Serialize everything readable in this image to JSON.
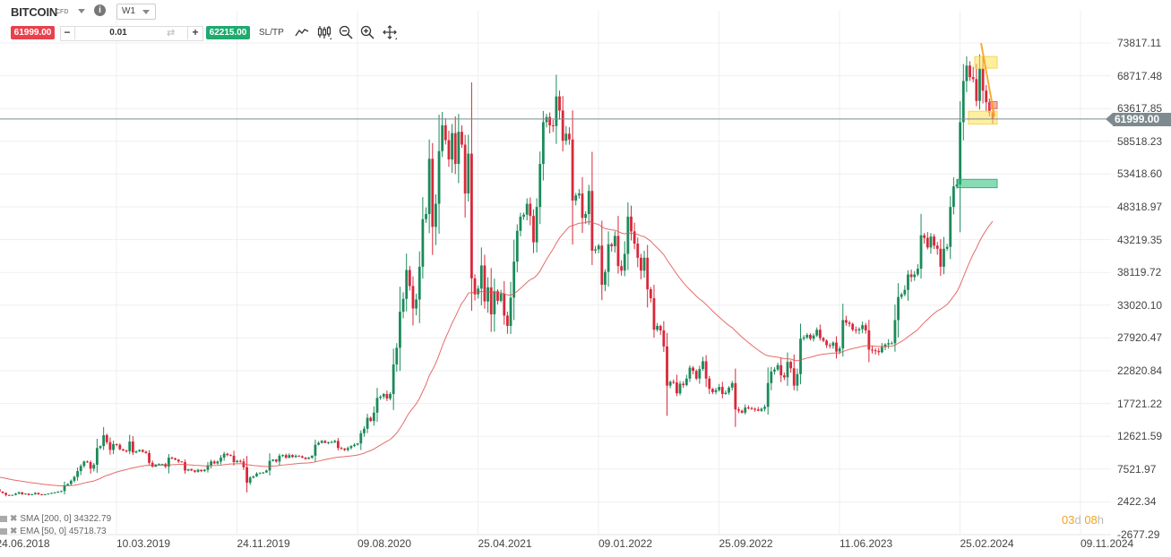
{
  "header": {
    "symbol": "BITCOIN",
    "instrument_type": "CFD",
    "timeframe": "W1",
    "sell_price": "61999.00",
    "buy_price": "62215.00",
    "quantity": "0.01",
    "sltp_label": "SL/TP",
    "minus_label": "−",
    "plus_label": "+",
    "info_label": "i",
    "icons": [
      "chart-type-line-icon",
      "indicators-icon",
      "zoom-out-icon",
      "zoom-in-icon",
      "crosshair-move-icon"
    ]
  },
  "colors": {
    "sell": "#e8414d",
    "buy": "#1faa6e",
    "bull_candle": "#1b8a5a",
    "bear_candle": "#d8283a",
    "ema_line": "#e0524f",
    "price_line": "#7d8a8f",
    "countdown": "#f7a21b"
  },
  "indicators": [
    {
      "label": "SMA [200, 0] 34322.79"
    },
    {
      "label": "EMA [50, 0] 45718.73"
    }
  ],
  "countdown": {
    "days": "03",
    "d": "d",
    "hours": "08",
    "h": "h"
  },
  "current_price_tag": "61999.00",
  "chart_data": {
    "type": "candlestick",
    "title": "BITCOIN CFD W1",
    "xlabel": "",
    "ylabel": "",
    "ylim": [
      -2677.29,
      73817.11
    ],
    "y_ticks": [
      "73817.11",
      "68717.48",
      "63617.85",
      "58518.23",
      "53418.60",
      "48318.97",
      "43219.35",
      "38119.72",
      "33020.10",
      "27920.47",
      "22820.84",
      "17721.22",
      "12621.59",
      "7521.97",
      "2422.34",
      "-2677.29"
    ],
    "x_ticks": [
      "24.06.2018",
      "10.03.2019",
      "24.11.2019",
      "09.08.2020",
      "25.04.2021",
      "09.01.2022",
      "25.09.2022",
      "11.06.2023",
      "25.02.2024",
      "09.11.2024"
    ],
    "current_price": 61999.0,
    "grid": true,
    "series_note": "approximate weekly closes read from chart, Jun 2018 - Mar 2024",
    "weekly_closes": [
      6400,
      6700,
      7400,
      7300,
      6300,
      6400,
      6200,
      6700,
      6500,
      6300,
      6600,
      6500,
      6600,
      6500,
      6400,
      6500,
      6300,
      5600,
      4400,
      4000,
      3800,
      3500,
      3400,
      3500,
      3700,
      3900,
      3600,
      3700,
      3500,
      3600,
      3800,
      3600,
      3500,
      3600,
      3700,
      3800,
      3900,
      4000,
      4100,
      5000,
      5200,
      5700,
      6300,
      7200,
      8000,
      8700,
      8600,
      7600,
      8200,
      10800,
      11100,
      12800,
      11700,
      10500,
      11400,
      11300,
      10600,
      10400,
      10300,
      11800,
      10100,
      10300,
      10500,
      10200,
      10000,
      8500,
      7900,
      8200,
      8300,
      8300,
      7900,
      9300,
      9200,
      9000,
      8700,
      8600,
      7300,
      7500,
      7300,
      7100,
      7400,
      7200,
      7400,
      8100,
      8700,
      8400,
      8700,
      9300,
      9900,
      9700,
      9600,
      8600,
      8800,
      8700,
      7800,
      5400,
      6200,
      6400,
      6800,
      6900,
      7000,
      7300,
      8800,
      9000,
      8700,
      9600,
      9700,
      9300,
      9700,
      9400,
      9600,
      9500,
      9300,
      9100,
      9300,
      9600,
      11300,
      11600,
      11900,
      11600,
      11700,
      11700,
      11900,
      10800,
      10700,
      10500,
      10800,
      11100,
      11300,
      11500,
      13100,
      13800,
      15500,
      15000,
      16300,
      18600,
      18800,
      19200,
      18500,
      19200,
      23800,
      26400,
      32000,
      34000,
      38500,
      36000,
      32500,
      33900,
      39000,
      46400,
      47200,
      55800,
      45200,
      48800,
      57000,
      61000,
      58700,
      55700,
      59800,
      55000,
      60000,
      58000,
      50400,
      56600,
      37200,
      34700,
      35600,
      39200,
      33600,
      35800,
      31600,
      35200,
      33700,
      34800,
      31400,
      29800,
      34200,
      39800,
      44600,
      46800,
      47100,
      48800,
      46900,
      42800,
      48300,
      55000,
      61500,
      62300,
      61000,
      60900,
      65500,
      63300,
      58600,
      59700,
      58800,
      49300,
      50100,
      50400,
      46600,
      47200,
      50800,
      41500,
      41700,
      42300,
      36200,
      38200,
      42500,
      42200,
      43800,
      39100,
      38400,
      41000,
      46800,
      44500,
      42600,
      40400,
      38400,
      40400,
      35500,
      34100,
      29200,
      29800,
      29100,
      26600,
      20500,
      21100,
      21000,
      19300,
      20800,
      20600,
      21600,
      23300,
      22800,
      21600,
      23100,
      24300,
      21600,
      20000,
      19500,
      19800,
      20300,
      19200,
      19400,
      20200,
      20900,
      16800,
      16600,
      16300,
      17100,
      17000,
      16900,
      16800,
      16600,
      16900,
      17200,
      20900,
      22700,
      23000,
      23700,
      22100,
      21800,
      24200,
      23200,
      20500,
      22300,
      27800,
      28000,
      28400,
      27800,
      28300,
      29200,
      27900,
      27500,
      26800,
      26700,
      27200,
      25800,
      26300,
      30700,
      30300,
      30100,
      29200,
      29100,
      29300,
      29900,
      29100,
      26100,
      26000,
      25900,
      25700,
      26500,
      26900,
      27100,
      27100,
      30700,
      34300,
      34700,
      35400,
      37800,
      37400,
      37800,
      38700,
      43900,
      43500,
      42000,
      43700,
      42300,
      41800,
      39000,
      41800,
      42100,
      48300,
      51500,
      51800,
      61500,
      67900,
      70300,
      68500,
      68200,
      64800,
      69800,
      66400,
      64600,
      63000,
      61999
    ],
    "ema50_approx": "smoothed red line; last value 45718.73",
    "annotations": [
      {
        "type": "zone",
        "color": "yellow",
        "price_low": 69900,
        "price_high": 71700
      },
      {
        "type": "zone",
        "color": "yellow",
        "price_low": 61200,
        "price_high": 63200
      },
      {
        "type": "zone",
        "color": "green",
        "price_low": 51300,
        "price_high": 52600
      },
      {
        "type": "zone",
        "color": "red",
        "price_low": 63600,
        "price_high": 64700
      },
      {
        "type": "trendline",
        "color": "orange",
        "from_price": 73800,
        "to_price": 62400
      }
    ]
  }
}
